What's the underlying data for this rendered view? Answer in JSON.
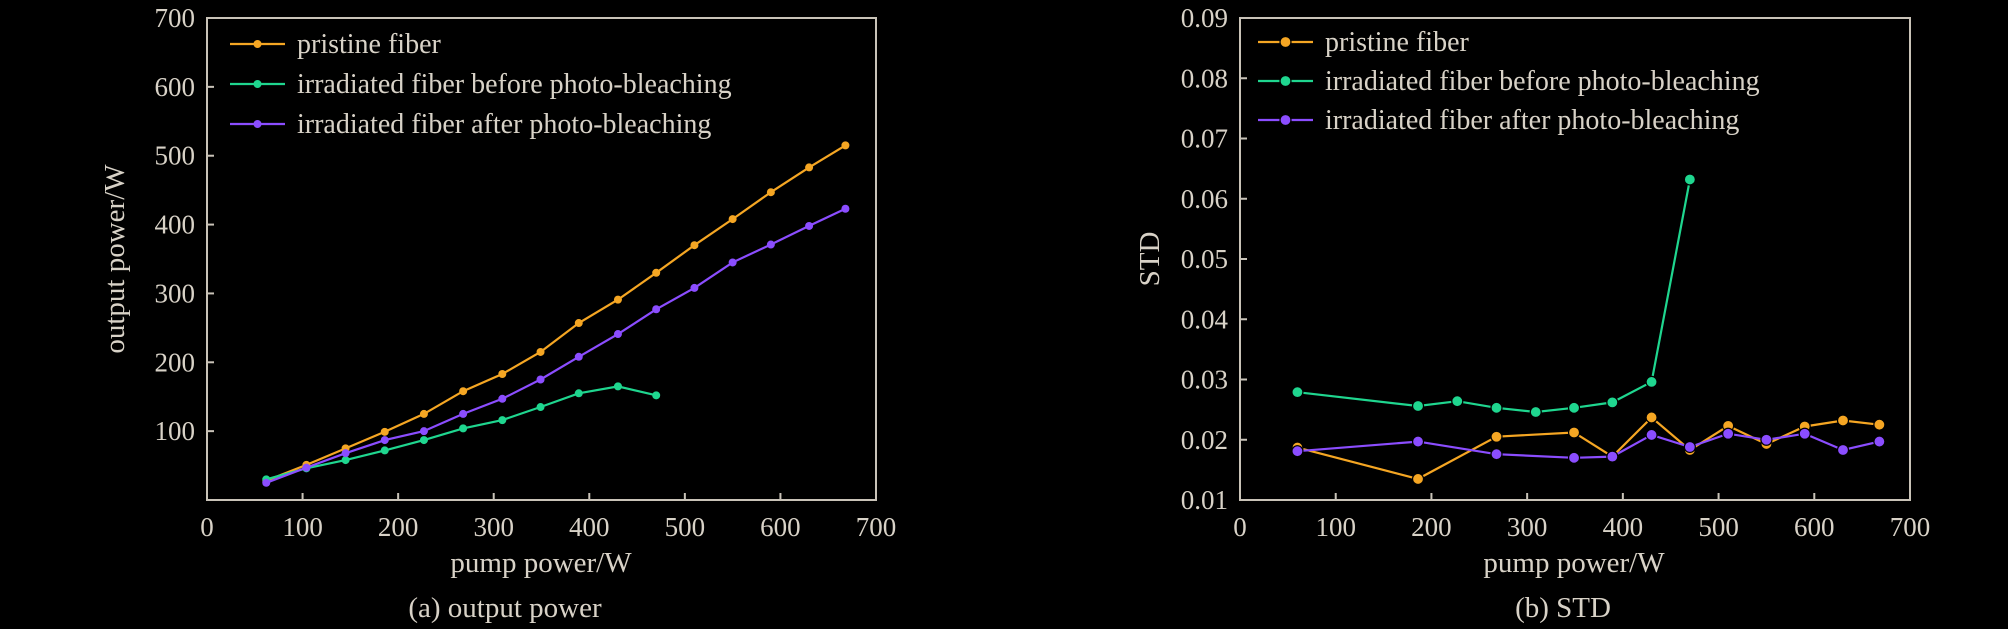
{
  "chart_data": [
    {
      "type": "line",
      "caption": "(a) output power",
      "xlabel": "pump power/W",
      "ylabel": "output power/W",
      "xlim": [
        0,
        700
      ],
      "ylim": [
        0,
        700
      ],
      "xticks": [
        0,
        100,
        200,
        300,
        400,
        500,
        600,
        700
      ],
      "yticks": [
        100,
        200,
        300,
        400,
        500,
        600,
        700
      ],
      "legend_position": "top-left",
      "series": [
        {
          "name": "pristine fiber",
          "color": "#f5a623",
          "marker": "dot",
          "x": [
            62,
            104,
            145,
            186,
            227,
            268,
            309,
            349,
            389,
            430,
            470,
            510,
            550,
            590,
            630,
            668
          ],
          "y": [
            28,
            51,
            75,
            99,
            125,
            158,
            183,
            215,
            257,
            291,
            330,
            370,
            408,
            447,
            483,
            515
          ]
        },
        {
          "name": "irradiated fiber before photo-bleaching",
          "color": "#1fd68f",
          "marker": "dot",
          "x": [
            62,
            104,
            145,
            186,
            227,
            268,
            309,
            349,
            389,
            430,
            470
          ],
          "y": [
            30,
            46,
            58,
            72,
            87,
            104,
            116,
            135,
            155,
            165,
            152
          ]
        },
        {
          "name": "irradiated fiber after photo-bleaching",
          "color": "#8b4dff",
          "marker": "dot",
          "x": [
            62,
            104,
            145,
            186,
            227,
            268,
            309,
            349,
            389,
            430,
            470,
            510,
            550,
            590,
            630,
            668
          ],
          "y": [
            25,
            47,
            68,
            87,
            100,
            125,
            147,
            175,
            208,
            241,
            277,
            308,
            345,
            371,
            398,
            423
          ]
        }
      ]
    },
    {
      "type": "line",
      "caption": "(b) STD",
      "xlabel": "pump power/W",
      "ylabel": "STD",
      "xlim": [
        0,
        700
      ],
      "ylim": [
        0.01,
        0.09
      ],
      "xticks": [
        0,
        100,
        200,
        300,
        400,
        500,
        600,
        700
      ],
      "yticks": [
        "0.01",
        "0.02",
        "0.03",
        "0.04",
        "0.05",
        "0.06",
        "0.07",
        "0.08",
        "0.09"
      ],
      "legend_position": "top-left",
      "series": [
        {
          "name": "pristine fiber",
          "color": "#f5a623",
          "marker": "ring",
          "x": [
            60,
            186,
            268,
            349,
            389,
            430,
            470,
            510,
            550,
            590,
            630,
            668
          ],
          "y": [
            0.0187,
            0.0135,
            0.0205,
            0.0212,
            0.0172,
            0.0237,
            0.0183,
            0.0223,
            0.0193,
            0.0222,
            0.0232,
            0.0225
          ]
        },
        {
          "name": "irradiated fiber before photo-bleaching",
          "color": "#1fd68f",
          "marker": "ring",
          "x": [
            60,
            186,
            227,
            268,
            309,
            349,
            389,
            430,
            470
          ],
          "y": [
            0.0279,
            0.0256,
            0.0264,
            0.0253,
            0.0246,
            0.0253,
            0.0262,
            0.0296,
            0.0632
          ]
        },
        {
          "name": "irradiated fiber after photo-bleaching",
          "color": "#8b4dff",
          "marker": "ring",
          "x": [
            60,
            186,
            268,
            349,
            389,
            430,
            470,
            510,
            550,
            590,
            630,
            668
          ],
          "y": [
            0.0181,
            0.0197,
            0.0176,
            0.017,
            0.0172,
            0.0208,
            0.0188,
            0.021,
            0.02,
            0.021,
            0.0183,
            0.0197
          ]
        }
      ]
    }
  ]
}
